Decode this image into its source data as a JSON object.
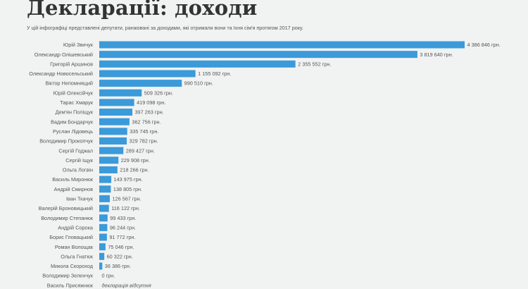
{
  "header": {
    "title": "Декларації: доходи",
    "subtitle": "У цій інфографіці представлені депутати, ранжовані за доходами, які отримали вони та їхня сім'я протягом 2017 року."
  },
  "colors": {
    "bar": "#3b9ad9",
    "background": "#f1f2f2"
  },
  "chart_data": {
    "type": "bar",
    "orientation": "horizontal",
    "title": "",
    "xlabel": "",
    "ylabel": "",
    "unit": "грн.",
    "xlim": [
      0,
      4386846
    ],
    "categories": [
      "Юрій Звичук",
      "Олександр Олішевський",
      "Григорій Аршинов",
      "Олександр Новосельський",
      "Віктор Непомнящий",
      "Юрій Олексійчук",
      "Тарас Хмарук",
      "Дем'ян Поліщук",
      "Вадим Бондарчук",
      "Руслан Лідовець",
      "Володимир Прокопчук",
      "Сергій Годжал",
      "Сергій Іщук",
      "Ольга Логвін",
      "Василь Миронюк",
      "Андрій Смирнов",
      "Іван Ткачук",
      "Валерій Броновицький",
      "Володимир Степанюк",
      "Андрій Сорока",
      "Борис Гловацький",
      "Роман Волощак",
      "Ольга Гнатюк",
      "Микола Скороход",
      "Володимир Зеленчук",
      "Василь Присяжнюк"
    ],
    "values": [
      4386846,
      3819640,
      2355552,
      1155092,
      990510,
      509326,
      419098,
      397263,
      362756,
      335745,
      329782,
      289427,
      229908,
      218266,
      143975,
      138805,
      126567,
      116122,
      99433,
      96244,
      91772,
      75046,
      60322,
      36386,
      0,
      null
    ],
    "value_labels": [
      "4 386 846 грн.",
      "3 819 640 грн.",
      "2 355 552 грн.",
      "1 155 092 грн.",
      "990 510 грн.",
      "509 326 грн.",
      "419 098 грн.",
      "397 263 грн.",
      "362 756 грн.",
      "335 745 грн.",
      "329 782 грн.",
      "289 427 грн.",
      "229 908 грн.",
      "218 266 грн.",
      "143 975 грн.",
      "138 805 грн.",
      "126 567 грн.",
      "116 122 грн.",
      "99 433 грн.",
      "96 244 грн.",
      "91 772 грн.",
      "75 046 грн.",
      "60 322 грн.",
      "36 386 грн.",
      "0 грн.",
      "декларація відсутня"
    ]
  }
}
